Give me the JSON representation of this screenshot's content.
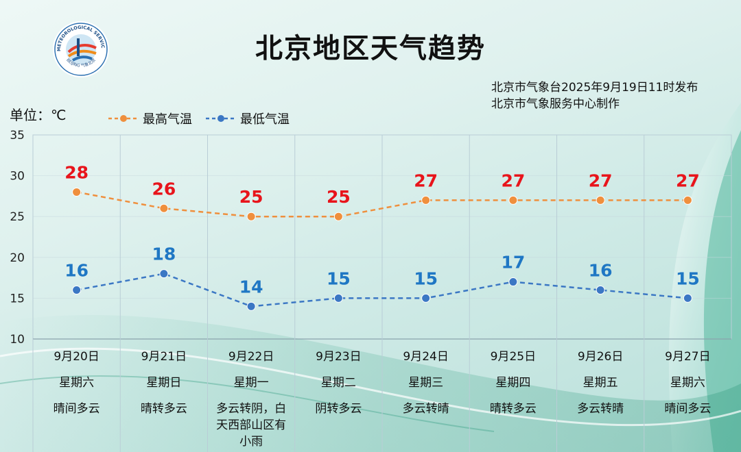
{
  "title": "北京地区天气趋势",
  "issuer": {
    "line1": "北京市气象台2025年9月19日11时发布",
    "line2": "北京市气象服务中心制作"
  },
  "logo": {
    "text_top": "METEOROLOGICAL SERVICE",
    "text_bottom": "BEIJING 气象北京"
  },
  "unit_label": "单位：℃",
  "colors": {
    "high": "#ef8f3d",
    "low": "#3b77c4",
    "high_label": "#e8141b",
    "low_label": "#1f77c4"
  },
  "chart_data": {
    "type": "line",
    "categories": [
      "9月20日",
      "9月21日",
      "9月22日",
      "9月23日",
      "9月24日",
      "9月25日",
      "9月26日",
      "9月27日"
    ],
    "weekdays": [
      "星期六",
      "星期日",
      "星期一",
      "星期二",
      "星期三",
      "星期四",
      "星期五",
      "星期六"
    ],
    "weather": [
      [
        "晴间多云"
      ],
      [
        "晴转多云"
      ],
      [
        "多云转阴，白",
        "天西部山区有",
        "小雨"
      ],
      [
        "阴转多云"
      ],
      [
        "多云转晴"
      ],
      [
        "晴转多云"
      ],
      [
        "多云转晴"
      ],
      [
        "晴间多云"
      ]
    ],
    "series": [
      {
        "name": "最高气温",
        "values": [
          28,
          26,
          25,
          25,
          27,
          27,
          27,
          27
        ]
      },
      {
        "name": "最低气温",
        "values": [
          16,
          18,
          14,
          15,
          15,
          17,
          16,
          15
        ]
      }
    ],
    "ylim": [
      10,
      35
    ],
    "yticks": [
      10,
      15,
      20,
      25,
      30,
      35
    ],
    "grid": true,
    "line_style": "dashed",
    "legend_position": "top-left"
  }
}
